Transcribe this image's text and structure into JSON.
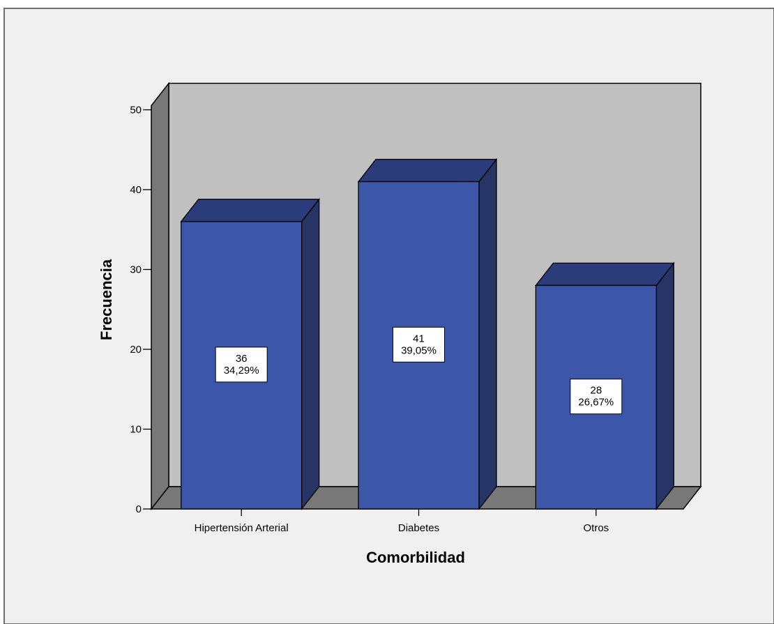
{
  "chart_data": {
    "type": "bar",
    "style": "3d",
    "categories": [
      "Hipertensión Arterial",
      "Diabetes",
      "Otros"
    ],
    "values": [
      36,
      41,
      28
    ],
    "data_labels": [
      [
        "36",
        "34,29%"
      ],
      [
        "41",
        "39,05%"
      ],
      [
        "28",
        "26,67%"
      ]
    ],
    "xlabel": "Comorbilidad",
    "ylabel": "Frecuencia",
    "ylim": [
      0,
      50
    ],
    "yticks": [
      "0",
      "10",
      "20",
      "30",
      "40",
      "50"
    ],
    "grid": false,
    "legend": "none"
  },
  "colors": {
    "background": "#f0f0f0",
    "frame_border": "#6e6e6e",
    "back_wall": "#c0c0c0",
    "side_wall": "#787878",
    "floor": "#787878",
    "bar_front": "#3c57a9",
    "bar_top": "#2b3c7a",
    "bar_side": "#263566",
    "label_box": "#ffffff"
  }
}
